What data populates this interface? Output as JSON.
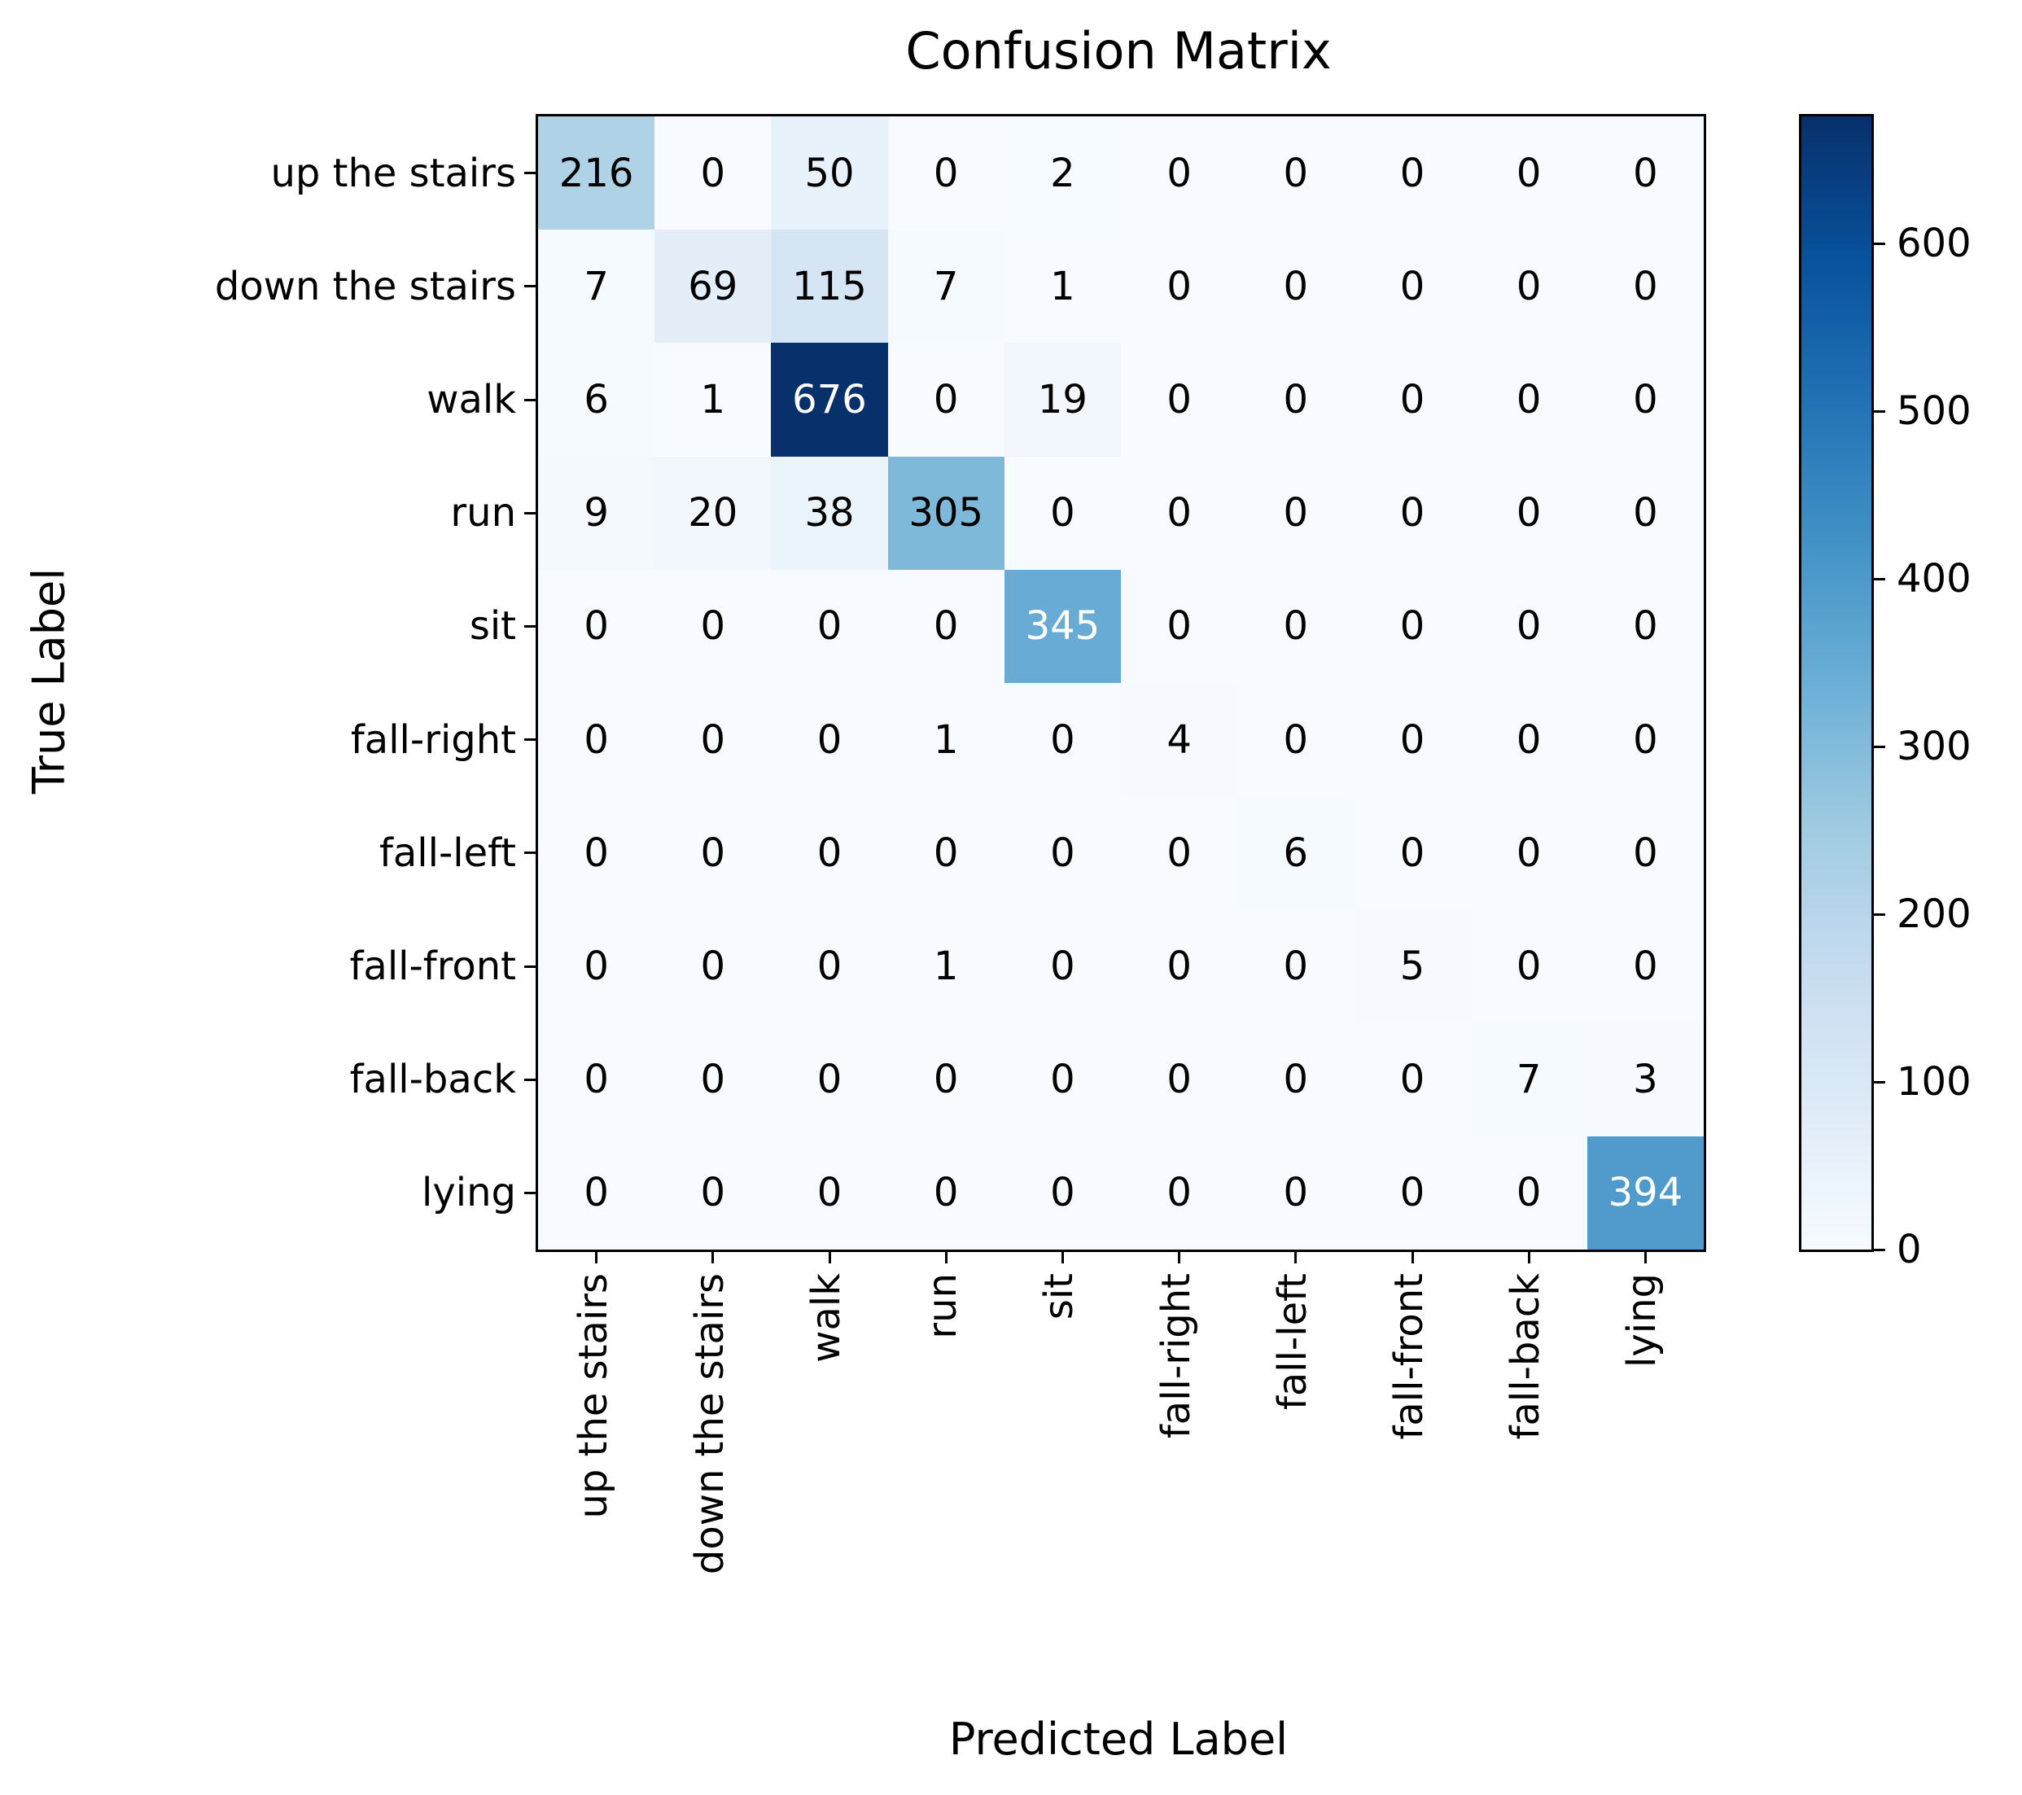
{
  "chart_data": {
    "type": "heatmap",
    "title": "Confusion Matrix",
    "xlabel": "Predicted Label",
    "ylabel": "True Label",
    "categories": [
      "up the stairs",
      "down the stairs",
      "walk",
      "run",
      "sit",
      "fall-right",
      "fall-left",
      "fall-front",
      "fall-back",
      "lying"
    ],
    "matrix": [
      [
        216,
        0,
        50,
        0,
        2,
        0,
        0,
        0,
        0,
        0
      ],
      [
        7,
        69,
        115,
        7,
        1,
        0,
        0,
        0,
        0,
        0
      ],
      [
        6,
        1,
        676,
        0,
        19,
        0,
        0,
        0,
        0,
        0
      ],
      [
        9,
        20,
        38,
        305,
        0,
        0,
        0,
        0,
        0,
        0
      ],
      [
        0,
        0,
        0,
        0,
        345,
        0,
        0,
        0,
        0,
        0
      ],
      [
        0,
        0,
        0,
        1,
        0,
        4,
        0,
        0,
        0,
        0
      ],
      [
        0,
        0,
        0,
        0,
        0,
        0,
        6,
        0,
        0,
        0
      ],
      [
        0,
        0,
        0,
        1,
        0,
        0,
        0,
        5,
        0,
        0
      ],
      [
        0,
        0,
        0,
        0,
        0,
        0,
        0,
        0,
        7,
        3
      ],
      [
        0,
        0,
        0,
        0,
        0,
        0,
        0,
        0,
        0,
        394
      ]
    ],
    "vmin": 0,
    "vmax": 676,
    "colorbar_ticks": [
      0,
      100,
      200,
      300,
      400,
      500,
      600
    ],
    "colormap": "Blues",
    "colormap_stops": [
      {
        "pos": 0.0,
        "color": "#f7fbff"
      },
      {
        "pos": 0.125,
        "color": "#deebf7"
      },
      {
        "pos": 0.25,
        "color": "#c6dbef"
      },
      {
        "pos": 0.375,
        "color": "#9ecae1"
      },
      {
        "pos": 0.5,
        "color": "#6baed6"
      },
      {
        "pos": 0.625,
        "color": "#4292c6"
      },
      {
        "pos": 0.75,
        "color": "#2171b5"
      },
      {
        "pos": 0.875,
        "color": "#08519c"
      },
      {
        "pos": 1.0,
        "color": "#08306b"
      }
    ],
    "cell_text_colors": {
      "light": "#ffffff",
      "dark": "#000000"
    },
    "axis_color": "#000000",
    "legend_position": "right-colorbar",
    "grid": false
  }
}
